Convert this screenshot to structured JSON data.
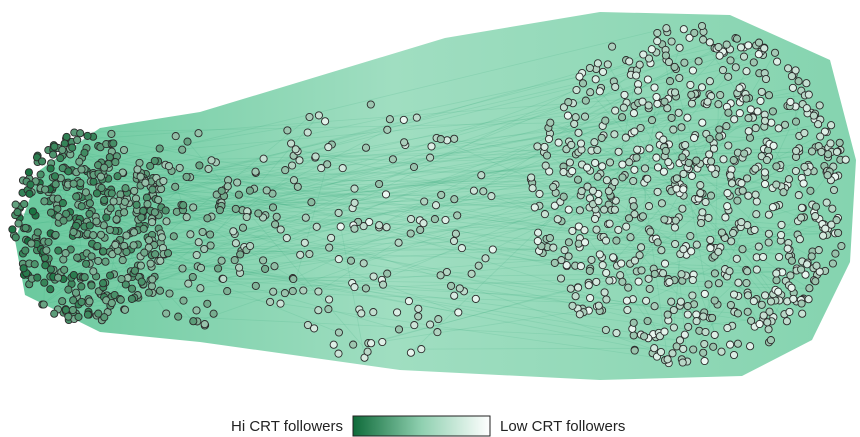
{
  "legend": {
    "left_label": "Hi CRT followers",
    "right_label": "Low CRT followers"
  }
}
